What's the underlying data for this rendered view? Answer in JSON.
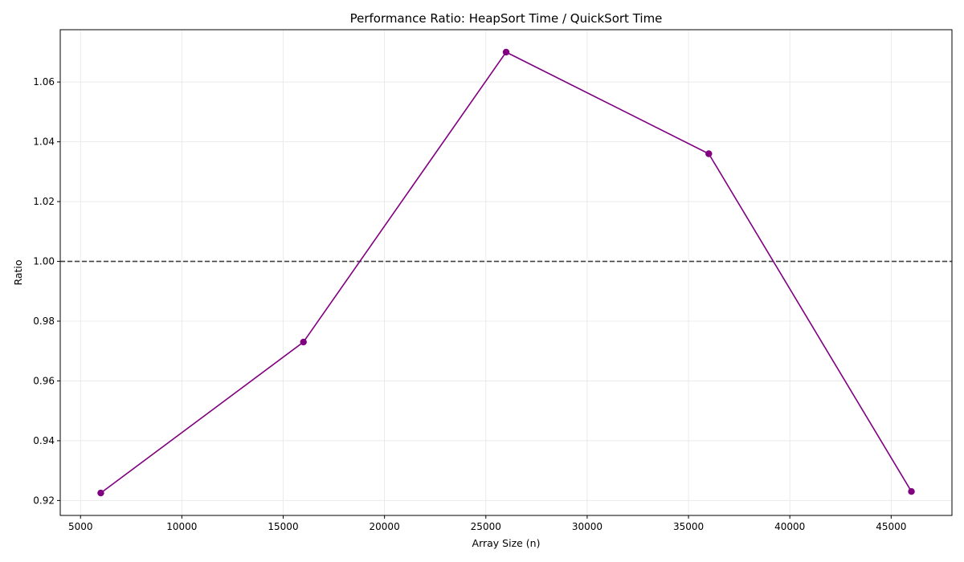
{
  "chart_data": {
    "type": "line",
    "title": "Performance Ratio: HeapSort Time / QuickSort Time",
    "xlabel": "Array Size (n)",
    "ylabel": "Ratio",
    "xlim": [
      4000,
      48000
    ],
    "ylim": [
      0.915,
      1.0775
    ],
    "x_ticks": [
      5000,
      10000,
      15000,
      20000,
      25000,
      30000,
      35000,
      40000,
      45000
    ],
    "y_ticks": [
      0.92,
      0.94,
      0.96,
      0.98,
      1.0,
      1.02,
      1.04,
      1.06
    ],
    "x_tick_labels": [
      "5000",
      "10000",
      "15000",
      "20000",
      "25000",
      "30000",
      "35000",
      "40000",
      "45000"
    ],
    "y_tick_labels": [
      "0.92",
      "0.94",
      "0.96",
      "0.98",
      "1.00",
      "1.02",
      "1.04",
      "1.06"
    ],
    "grid": true,
    "reference_line": {
      "y": 1.0,
      "style": "dashed",
      "color": "#404040"
    },
    "series": [
      {
        "color": "#800080",
        "marker": "circle",
        "x": [
          6000,
          16000,
          26000,
          36000,
          46000
        ],
        "y": [
          0.9225,
          0.973,
          1.07,
          1.036,
          0.923
        ]
      }
    ]
  }
}
